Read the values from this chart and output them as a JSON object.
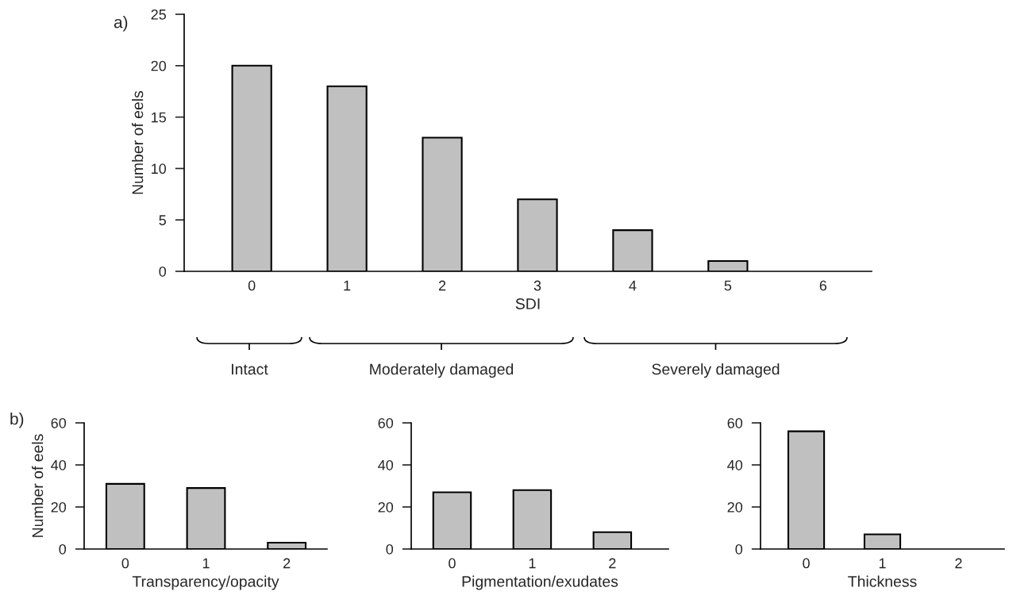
{
  "chart_data": [
    {
      "type": "bar",
      "title": "a)",
      "xlabel": "SDI",
      "ylabel": "Number of eels",
      "categories": [
        "0",
        "1",
        "2",
        "3",
        "4",
        "5",
        "6"
      ],
      "values": [
        20,
        18,
        13,
        7,
        4,
        1,
        0
      ],
      "color": "#c0c0c0",
      "ylim": [
        0,
        25
      ],
      "yticks": [
        0,
        5,
        10,
        15,
        20,
        25
      ],
      "grid": false,
      "legend": false,
      "annotations": [
        "Intact",
        "Moderately damaged",
        "Severely damaged"
      ]
    },
    {
      "type": "bar",
      "title": "b)",
      "xlabel": "Transparency/opacity",
      "ylabel": "Number of eels",
      "categories": [
        "0",
        "1",
        "2"
      ],
      "values": [
        31,
        29,
        3
      ],
      "color": "#c0c0c0",
      "ylim": [
        0,
        60
      ],
      "yticks": [
        0,
        20,
        40,
        60
      ],
      "grid": false,
      "legend": false
    },
    {
      "type": "bar",
      "xlabel": "Pigmentation/exudates",
      "categories": [
        "0",
        "1",
        "2"
      ],
      "values": [
        27,
        28,
        8
      ],
      "color": "#c0c0c0",
      "ylim": [
        0,
        60
      ],
      "yticks": [
        0,
        20,
        40,
        60
      ],
      "grid": false,
      "legend": false
    },
    {
      "type": "bar",
      "xlabel": "Thickness",
      "categories": [
        "0",
        "1",
        "2"
      ],
      "values": [
        56,
        7,
        0
      ],
      "color": "#c0c0c0",
      "ylim": [
        0,
        60
      ],
      "yticks": [
        0,
        20,
        40,
        60
      ],
      "grid": false,
      "legend": false
    }
  ]
}
